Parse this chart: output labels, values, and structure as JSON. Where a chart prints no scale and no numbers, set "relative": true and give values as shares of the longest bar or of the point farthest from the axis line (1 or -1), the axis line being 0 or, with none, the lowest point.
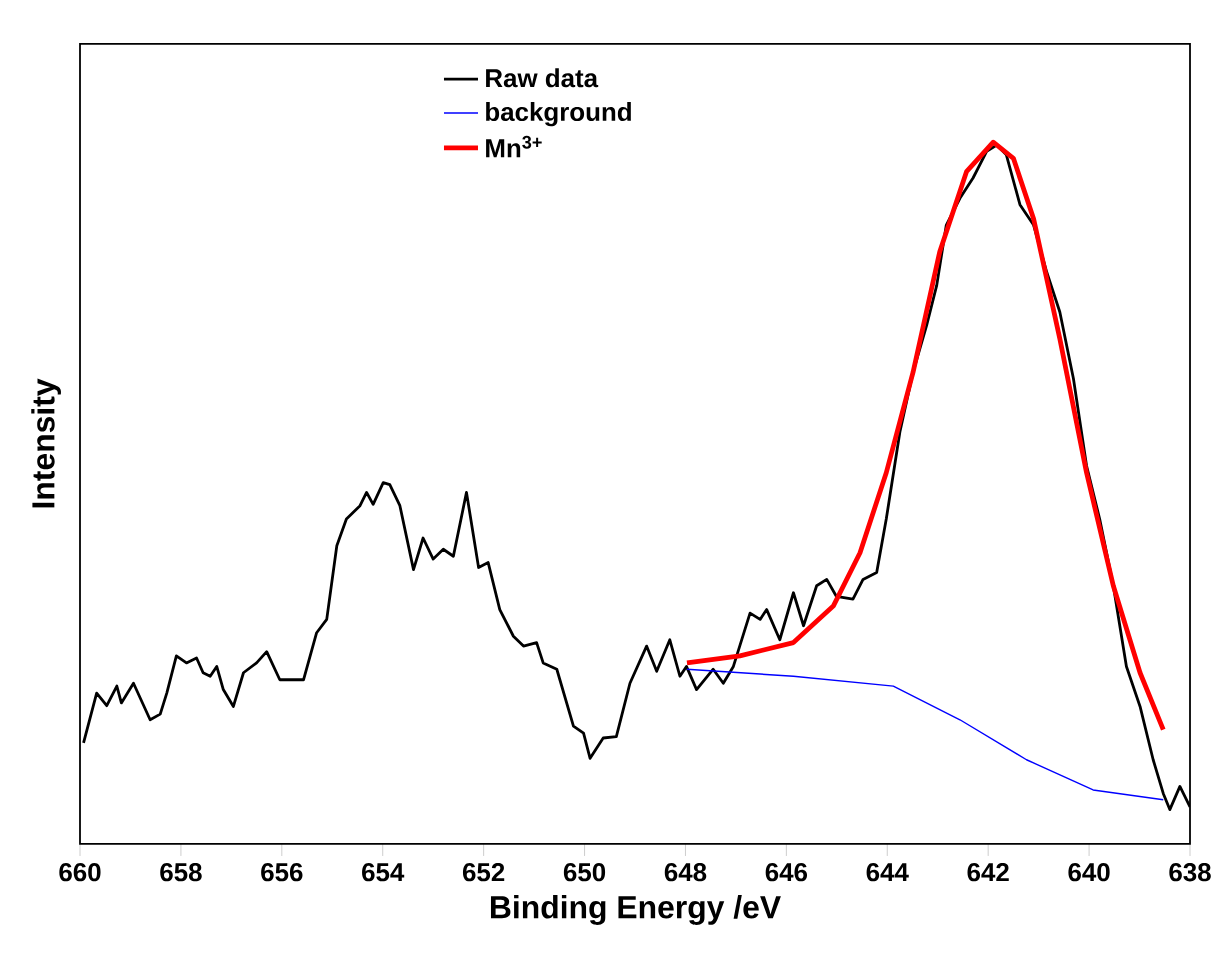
{
  "chart_data": {
    "type": "line",
    "xlabel": "Binding Energy /eV",
    "ylabel": "Intensity",
    "relative": true,
    "tick_labels": "x",
    "legend": "top",
    "grid": false,
    "xlim": [
      660,
      638
    ],
    "xticks": [
      660,
      658,
      656,
      654,
      652,
      650,
      648,
      646,
      644,
      642,
      640,
      638
    ],
    "series": [
      {
        "name": "Raw data",
        "color": "#000000",
        "x": [
          659.93,
          659.67,
          659.47,
          659.27,
          659.18,
          658.94,
          658.61,
          658.41,
          658.28,
          658.09,
          657.89,
          657.69,
          657.56,
          657.42,
          657.29,
          657.16,
          656.96,
          656.76,
          656.5,
          656.3,
          656.04,
          655.77,
          655.57,
          655.31,
          655.11,
          654.91,
          654.72,
          654.45,
          654.32,
          654.19,
          653.99,
          653.86,
          653.66,
          653.39,
          653.2,
          653.0,
          652.8,
          652.6,
          652.34,
          652.1,
          651.91,
          651.68,
          651.41,
          651.21,
          650.95,
          650.82,
          650.55,
          650.22,
          650.02,
          649.89,
          649.63,
          649.37,
          649.1,
          648.77,
          648.57,
          648.31,
          648.11,
          647.98,
          647.78,
          647.45,
          647.25,
          647.05,
          646.72,
          646.52,
          646.39,
          646.13,
          645.86,
          645.66,
          645.4,
          645.2,
          645.01,
          644.68,
          644.48,
          644.21,
          644.02,
          643.75,
          643.49,
          643.22,
          643.02,
          642.83,
          642.56,
          642.3,
          642.03,
          641.83,
          641.64,
          641.37,
          641.1,
          640.84,
          640.58,
          640.31,
          640.05,
          639.79,
          639.52,
          639.26,
          638.99,
          638.73,
          638.53,
          638.4,
          638.2,
          638.0
        ],
        "values": [
          0.144,
          0.215,
          0.197,
          0.225,
          0.201,
          0.229,
          0.177,
          0.185,
          0.215,
          0.268,
          0.258,
          0.265,
          0.244,
          0.239,
          0.253,
          0.22,
          0.196,
          0.244,
          0.258,
          0.274,
          0.234,
          0.234,
          0.234,
          0.301,
          0.32,
          0.425,
          0.463,
          0.482,
          0.501,
          0.484,
          0.515,
          0.512,
          0.482,
          0.391,
          0.436,
          0.406,
          0.42,
          0.41,
          0.501,
          0.394,
          0.401,
          0.334,
          0.296,
          0.282,
          0.287,
          0.258,
          0.249,
          0.168,
          0.158,
          0.122,
          0.151,
          0.153,
          0.229,
          0.282,
          0.246,
          0.291,
          0.239,
          0.253,
          0.22,
          0.249,
          0.229,
          0.253,
          0.329,
          0.32,
          0.334,
          0.291,
          0.358,
          0.311,
          0.368,
          0.377,
          0.353,
          0.349,
          0.377,
          0.387,
          0.463,
          0.587,
          0.672,
          0.739,
          0.796,
          0.882,
          0.92,
          0.949,
          0.987,
          0.996,
          0.982,
          0.911,
          0.882,
          0.815,
          0.758,
          0.663,
          0.539,
          0.463,
          0.368,
          0.253,
          0.196,
          0.12,
          0.072,
          0.049,
          0.082,
          0.053
        ]
      },
      {
        "name": "background",
        "color": "#0000ff",
        "x": [
          647.97,
          645.86,
          643.88,
          642.56,
          641.24,
          639.92,
          638.53
        ],
        "values": [
          0.249,
          0.239,
          0.225,
          0.177,
          0.12,
          0.077,
          0.063
        ]
      },
      {
        "name": "Mn$^{3+}$",
        "color": "#ff0000",
        "x": [
          647.97,
          646.92,
          645.86,
          645.07,
          644.54,
          644.02,
          643.49,
          642.96,
          642.43,
          641.9,
          641.5,
          641.1,
          640.58,
          640.05,
          639.52,
          638.99,
          638.53
        ],
        "values": [
          0.258,
          0.268,
          0.287,
          0.339,
          0.415,
          0.529,
          0.672,
          0.844,
          0.958,
          1.0,
          0.977,
          0.891,
          0.72,
          0.529,
          0.368,
          0.244,
          0.163
        ]
      }
    ]
  }
}
